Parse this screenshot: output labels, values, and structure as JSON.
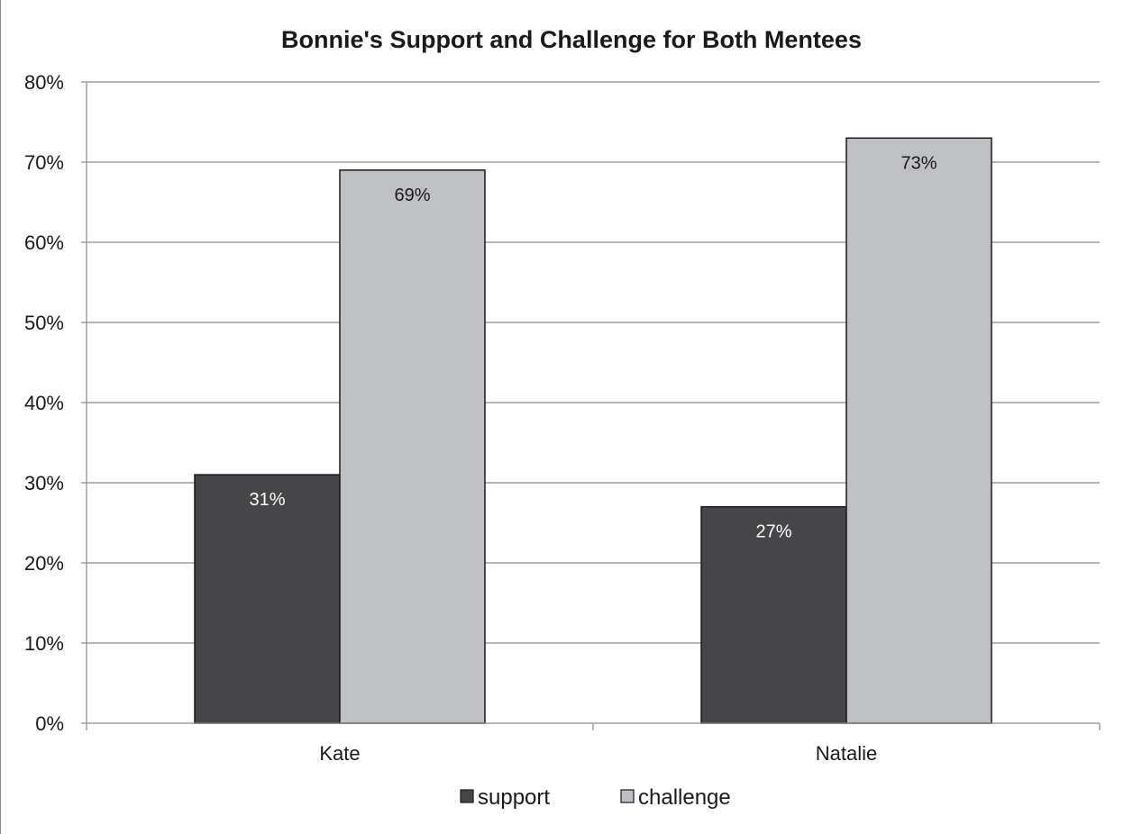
{
  "chart_data": {
    "type": "bar",
    "title": "Bonnie's Support and Challenge for Both Mentees",
    "xlabel": "",
    "ylabel": "",
    "categories": [
      "Kate",
      "Natalie"
    ],
    "series": [
      {
        "name": "support",
        "values": [
          31,
          27
        ],
        "labels": [
          "31%",
          "27%"
        ],
        "color": "#464648",
        "label_color": "#ffffff"
      },
      {
        "name": "challenge",
        "values": [
          69,
          73
        ],
        "labels": [
          "69%",
          "73%"
        ],
        "color": "#bfc0c3",
        "label_color": "#1a1a1a"
      }
    ],
    "ylim": [
      0,
      80
    ],
    "yticks": [
      0,
      10,
      20,
      30,
      40,
      50,
      60,
      70,
      80
    ],
    "ytick_labels": [
      "0%",
      "10%",
      "20%",
      "30%",
      "40%",
      "50%",
      "60%",
      "70%",
      "80%"
    ],
    "grid": true,
    "legend": "bottom"
  }
}
